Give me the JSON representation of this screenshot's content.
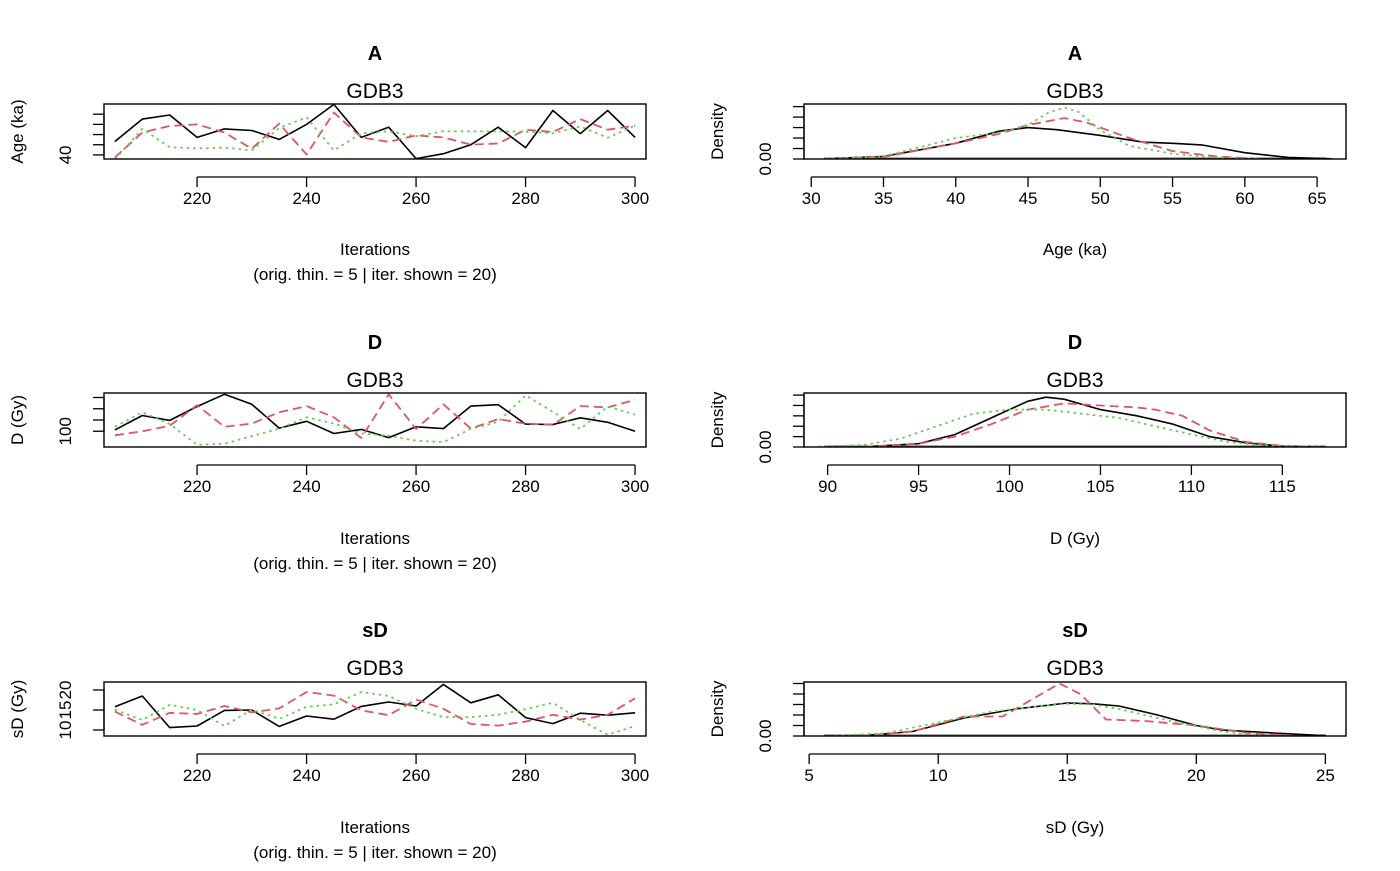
{
  "colors": {
    "chain1": "#000000",
    "chain2": "#DF536B",
    "chain3": "#61D04F"
  },
  "chart_data": [
    {
      "type": "line",
      "title": "A",
      "subtitle": "GDB3",
      "xlabel": "Iterations",
      "xlabel2": "(orig. thin. = 5 | iter. shown = 20)",
      "ylabel": "Age (ka)",
      "xlim": [
        203,
        302
      ],
      "ylim": [
        39,
        52.5
      ],
      "xticks": [
        220,
        240,
        260,
        280,
        300
      ],
      "yticks": [
        40,
        42.5,
        45,
        47.5,
        50
      ],
      "ytick_labels": [
        "40",
        "",
        "",
        "",
        ""
      ],
      "x": [
        205,
        210,
        215,
        220,
        225,
        230,
        235,
        240,
        245,
        250,
        255,
        260,
        265,
        270,
        275,
        280,
        285,
        290,
        295,
        300
      ],
      "series": [
        {
          "values": [
            43.3,
            48.8,
            49.8,
            44.3,
            46.4,
            46.0,
            43.8,
            47.5,
            52.4,
            44.3,
            46.8,
            39.1,
            40.3,
            42.5,
            46.8,
            41.8,
            50.9,
            45.2,
            50.9,
            44.3
          ]
        },
        {
          "values": [
            39.4,
            45.5,
            47.1,
            47.5,
            45.5,
            41.5,
            47.7,
            40.1,
            50.4,
            44.3,
            43.2,
            44.8,
            44.3,
            42.5,
            42.8,
            46.2,
            45.6,
            48.8,
            46.2,
            47.2
          ]
        },
        {
          "values": [
            38.9,
            46.4,
            41.9,
            41.6,
            41.8,
            41.1,
            46.6,
            49.2,
            41.1,
            45.3,
            45.8,
            44.6,
            45.8,
            45.8,
            45.8,
            45.7,
            45.3,
            47.0,
            44.2,
            47.2
          ]
        }
      ]
    },
    {
      "type": "line",
      "title": "A",
      "subtitle": "GDB3",
      "xlabel": "Age (ka)",
      "ylabel": "Density",
      "xlim": [
        29.5,
        67
      ],
      "ylim": [
        0,
        0.105
      ],
      "xticks": [
        30,
        35,
        40,
        45,
        50,
        55,
        60,
        65
      ],
      "yticks": [
        0,
        0.02,
        0.04,
        0.06,
        0.08,
        0.1
      ],
      "ytick_labels": [
        "0.00",
        "",
        "",
        "",
        "",
        ""
      ],
      "series": [
        {
          "x": [
            31,
            35,
            40,
            43,
            45,
            47,
            50,
            53,
            55,
            57,
            60,
            63,
            66
          ],
          "values": [
            0.0005,
            0.005,
            0.03,
            0.053,
            0.06,
            0.056,
            0.045,
            0.032,
            0.03,
            0.027,
            0.012,
            0.003,
            0.0004
          ]
        },
        {
          "x": [
            31,
            35,
            40,
            43,
            45,
            47.5,
            49,
            52,
            55,
            58,
            61
          ],
          "values": [
            0.0005,
            0.004,
            0.03,
            0.048,
            0.065,
            0.078,
            0.07,
            0.04,
            0.015,
            0.005,
            0.0005
          ]
        },
        {
          "x": [
            31,
            35,
            40,
            43,
            45,
            46.5,
            47.5,
            48.5,
            50,
            52,
            55,
            58,
            61
          ],
          "values": [
            0.0005,
            0.005,
            0.04,
            0.05,
            0.065,
            0.09,
            0.098,
            0.09,
            0.055,
            0.025,
            0.01,
            0.003,
            0.0005
          ]
        }
      ]
    },
    {
      "type": "line",
      "title": "D",
      "subtitle": "GDB3",
      "xlabel": "Iterations",
      "xlabel2": "(orig. thin. = 5 | iter. shown = 20)",
      "ylabel": "D (Gy)",
      "xlim": [
        203,
        302
      ],
      "ylim": [
        96.5,
        108.5
      ],
      "xticks": [
        220,
        240,
        260,
        280,
        300
      ],
      "yticks": [
        100,
        102.5,
        105,
        107.5
      ],
      "ytick_labels": [
        "100",
        "",
        "",
        ""
      ],
      "x": [
        205,
        210,
        215,
        220,
        225,
        230,
        235,
        240,
        245,
        250,
        255,
        260,
        265,
        270,
        275,
        280,
        285,
        290,
        295,
        300
      ],
      "series": [
        {
          "values": [
            100.3,
            103.5,
            102.4,
            105.5,
            108.2,
            106.0,
            100.7,
            102.2,
            99.5,
            100.4,
            98.6,
            101.0,
            100.6,
            105.6,
            105.9,
            101.6,
            101.5,
            103.0,
            102.0,
            100.0
          ]
        },
        {
          "values": [
            99.1,
            100.0,
            101.2,
            105.8,
            101.0,
            101.7,
            104.2,
            105.6,
            103.1,
            98.5,
            108.2,
            100.5,
            106.0,
            100.6,
            102.7,
            101.7,
            101.4,
            105.6,
            105.3,
            107.0
          ]
        },
        {
          "values": [
            101.0,
            104.2,
            101.6,
            97.0,
            97.2,
            98.9,
            100.6,
            103.1,
            101.7,
            99.5,
            99.0,
            97.9,
            97.6,
            100.5,
            102.1,
            108.0,
            104.3,
            100.5,
            105.5,
            103.7
          ]
        }
      ]
    },
    {
      "type": "line",
      "title": "D",
      "subtitle": "GDB3",
      "xlabel": "D (Gy)",
      "ylabel": "Density",
      "xlim": [
        88.7,
        118.5
      ],
      "ylim": [
        0,
        0.13
      ],
      "xticks": [
        90,
        95,
        100,
        105,
        110,
        115
      ],
      "yticks": [
        0,
        0.025,
        0.05,
        0.075,
        0.1,
        0.125
      ],
      "ytick_labels": [
        "0.00",
        "",
        "",
        "",
        "",
        ""
      ],
      "series": [
        {
          "x": [
            92,
            95,
            97,
            99,
            101,
            102,
            103,
            105,
            107,
            109,
            111,
            113,
            115,
            117
          ],
          "values": [
            0.0005,
            0.008,
            0.03,
            0.07,
            0.11,
            0.12,
            0.115,
            0.09,
            0.075,
            0.055,
            0.025,
            0.01,
            0.002,
            0.0003
          ]
        },
        {
          "x": [
            92,
            95,
            97,
            99,
            101,
            103,
            105,
            107,
            108,
            109.5,
            111,
            113,
            115,
            117
          ],
          "values": [
            0.0005,
            0.008,
            0.025,
            0.055,
            0.09,
            0.105,
            0.1,
            0.095,
            0.09,
            0.075,
            0.04,
            0.012,
            0.003,
            0.0003
          ]
        },
        {
          "x": [
            89.5,
            92,
            94,
            96,
            98,
            100,
            102,
            104,
            106,
            108,
            110,
            112,
            114,
            117.5
          ],
          "values": [
            0.001,
            0.005,
            0.02,
            0.05,
            0.08,
            0.09,
            0.09,
            0.08,
            0.07,
            0.05,
            0.03,
            0.012,
            0.004,
            0.0005
          ]
        }
      ]
    },
    {
      "type": "line",
      "title": "sD",
      "subtitle": "GDB3",
      "xlabel": "Iterations",
      "xlabel2": "(orig. thin. = 5 | iter. shown = 20)",
      "ylabel": "sD (Gy)",
      "xlim": [
        203,
        302
      ],
      "ylim": [
        8.5,
        22
      ],
      "xticks": [
        220,
        240,
        260,
        280,
        300
      ],
      "yticks": [
        10,
        15,
        20
      ],
      "ytick_labels": [
        "10",
        "15",
        "20"
      ],
      "x": [
        205,
        210,
        215,
        220,
        225,
        230,
        235,
        240,
        245,
        250,
        255,
        260,
        265,
        270,
        275,
        280,
        285,
        290,
        295,
        300
      ],
      "series": [
        {
          "values": [
            15.8,
            18.5,
            10.6,
            11.0,
            14.9,
            15.0,
            10.9,
            13.5,
            12.7,
            15.9,
            17.0,
            16.0,
            21.4,
            16.8,
            18.8,
            13.1,
            11.6,
            14.2,
            13.7,
            14.3
          ]
        },
        {
          "values": [
            14.6,
            11.3,
            14.3,
            14.0,
            16.0,
            14.4,
            15.4,
            19.5,
            18.6,
            14.9,
            13.7,
            17.6,
            15.3,
            11.5,
            11.1,
            12.1,
            13.8,
            12.6,
            13.8,
            17.9
          ]
        },
        {
          "values": [
            15.1,
            12.5,
            16.3,
            15.0,
            11.0,
            15.1,
            12.8,
            15.8,
            16.4,
            19.5,
            18.5,
            15.3,
            13.2,
            13.2,
            13.8,
            15.2,
            16.8,
            12.5,
            8.8,
            11.0
          ]
        }
      ]
    },
    {
      "type": "line",
      "title": "sD",
      "subtitle": "GDB3",
      "xlabel": "sD (Gy)",
      "ylabel": "Density",
      "xlim": [
        4.8,
        25.8
      ],
      "ylim": [
        0,
        0.36
      ],
      "xticks": [
        5,
        10,
        15,
        20,
        25
      ],
      "yticks": [
        0,
        0.07,
        0.14,
        0.21,
        0.28,
        0.35
      ],
      "ytick_labels": [
        "0.00",
        "",
        "",
        "",
        "",
        ""
      ],
      "series": [
        {
          "x": [
            7,
            9,
            11,
            13,
            15,
            16,
            17,
            18.5,
            20,
            21,
            23,
            25
          ],
          "values": [
            0.001,
            0.03,
            0.12,
            0.18,
            0.22,
            0.215,
            0.2,
            0.14,
            0.07,
            0.04,
            0.02,
            0.002
          ]
        },
        {
          "x": [
            7,
            9,
            11,
            12.5,
            14,
            14.7,
            15.5,
            16.5,
            18,
            20,
            22,
            24
          ],
          "values": [
            0.001,
            0.03,
            0.13,
            0.13,
            0.28,
            0.35,
            0.28,
            0.11,
            0.1,
            0.07,
            0.02,
            0.001
          ]
        },
        {
          "x": [
            6,
            8,
            10,
            12,
            14,
            15,
            16,
            17,
            19,
            21,
            22.5
          ],
          "values": [
            0.001,
            0.02,
            0.09,
            0.16,
            0.2,
            0.215,
            0.21,
            0.18,
            0.1,
            0.03,
            0.005
          ]
        }
      ]
    }
  ]
}
